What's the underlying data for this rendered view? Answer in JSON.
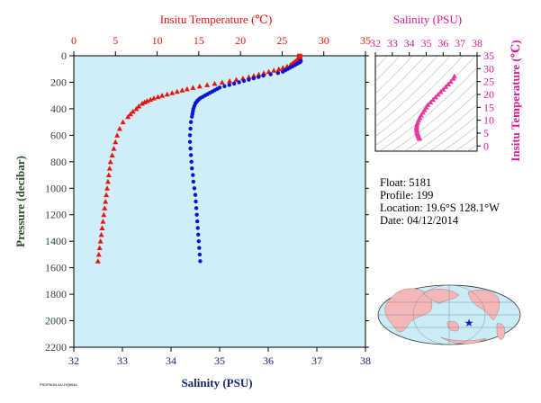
{
  "chart_data": [
    {
      "type": "scatter",
      "top_axis": {
        "label": "Insitu Temperature (℃)",
        "range": [
          0,
          35
        ],
        "ticks": [
          "0",
          "5",
          "10",
          "15",
          "20",
          "25",
          "30",
          "35"
        ]
      },
      "bottom_axis": {
        "label": "Salinity (PSU)",
        "range": [
          32,
          38
        ],
        "ticks": [
          "32",
          "33",
          "34",
          "35",
          "36",
          "37",
          "38"
        ]
      },
      "left_axis": {
        "label": "Pressure (decibar)",
        "range": [
          0,
          2200
        ],
        "inverted": true,
        "ticks": [
          "0",
          "200",
          "400",
          "600",
          "800",
          "1000",
          "1200",
          "1400",
          "1600",
          "1800",
          "2000",
          "2200"
        ]
      },
      "series": [
        {
          "marker": "triangle",
          "color": "#e8160c",
          "x_axis": "top",
          "pressure": [
            5,
            10,
            20,
            30,
            40,
            50,
            60,
            70,
            80,
            90,
            100,
            110,
            120,
            130,
            140,
            150,
            160,
            170,
            180,
            190,
            200,
            210,
            220,
            230,
            240,
            250,
            260,
            270,
            280,
            290,
            300,
            310,
            320,
            330,
            340,
            350,
            360,
            380,
            400,
            420,
            440,
            460,
            500,
            550,
            600,
            650,
            700,
            750,
            800,
            850,
            900,
            950,
            1000,
            1050,
            1100,
            1150,
            1200,
            1250,
            1300,
            1350,
            1400,
            1450,
            1500,
            1550
          ],
          "values": [
            27.1,
            27.1,
            27.0,
            26.8,
            26.6,
            26.4,
            26.2,
            26.0,
            25.6,
            25.1,
            24.6,
            24.0,
            23.4,
            22.8,
            22.2,
            21.6,
            21.0,
            20.3,
            19.5,
            18.7,
            17.8,
            16.9,
            16.0,
            15.1,
            14.3,
            13.6,
            13.0,
            12.4,
            11.8,
            11.2,
            10.6,
            10.1,
            9.6,
            9.2,
            8.8,
            8.5,
            8.2,
            7.8,
            7.5,
            7.1,
            6.8,
            6.5,
            5.9,
            5.5,
            5.2,
            5.0,
            4.8,
            4.6,
            4.4,
            4.3,
            4.2,
            4.1,
            4.0,
            3.9,
            3.8,
            3.7,
            3.6,
            3.5,
            3.4,
            3.3,
            3.2,
            3.1,
            3.0,
            2.9
          ]
        },
        {
          "marker": "circle",
          "color": "#0a14d6",
          "x_axis": "bottom",
          "pressure": [
            5,
            10,
            20,
            30,
            40,
            50,
            60,
            70,
            80,
            90,
            100,
            110,
            120,
            130,
            140,
            150,
            160,
            170,
            180,
            190,
            200,
            210,
            220,
            230,
            240,
            250,
            260,
            270,
            280,
            290,
            300,
            310,
            320,
            330,
            340,
            350,
            360,
            380,
            400,
            420,
            440,
            460,
            500,
            550,
            600,
            650,
            700,
            750,
            800,
            850,
            900,
            950,
            1000,
            1050,
            1100,
            1150,
            1200,
            1250,
            1300,
            1350,
            1400,
            1450,
            1500,
            1550
          ],
          "values": [
            36.65,
            36.65,
            36.66,
            36.66,
            36.67,
            36.65,
            36.6,
            36.55,
            36.5,
            36.45,
            36.4,
            36.35,
            36.3,
            36.2,
            36.05,
            35.9,
            35.8,
            35.7,
            35.6,
            35.5,
            35.4,
            35.3,
            35.2,
            35.1,
            35.0,
            34.95,
            34.9,
            34.85,
            34.8,
            34.75,
            34.7,
            34.65,
            34.6,
            34.57,
            34.54,
            34.52,
            34.5,
            34.48,
            34.46,
            34.45,
            34.44,
            34.43,
            34.41,
            34.4,
            34.39,
            34.39,
            34.4,
            34.41,
            34.42,
            34.43,
            34.45,
            34.46,
            34.48,
            34.5,
            34.51,
            34.52,
            34.53,
            34.54,
            34.55,
            34.56,
            34.57,
            34.58,
            34.59,
            34.6
          ]
        }
      ]
    },
    {
      "type": "scatter",
      "title": "Salinity (PSU)",
      "x_range": [
        32,
        38
      ],
      "x_ticks": [
        "32",
        "33",
        "34",
        "35",
        "36",
        "37",
        "38"
      ],
      "ylabel": "Insitu Temperature (℃)",
      "y_range": [
        -2,
        35
      ],
      "y_ticks": [
        "0",
        "5",
        "10",
        "15",
        "20",
        "25",
        "30",
        "35"
      ],
      "points_salinity": [
        34.6,
        34.59,
        34.57,
        34.55,
        34.53,
        34.51,
        34.49,
        34.47,
        34.45,
        34.44,
        34.43,
        34.43,
        34.44,
        34.46,
        34.5,
        34.55,
        34.62,
        34.7,
        34.8,
        34.9,
        35.0,
        35.1,
        35.25,
        35.4,
        35.55,
        35.7,
        35.85,
        36.0,
        36.15,
        36.3,
        36.45,
        36.6,
        36.66
      ],
      "points_temperature": [
        2.9,
        3.2,
        3.5,
        3.8,
        4.1,
        4.4,
        4.8,
        5.2,
        5.6,
        6.1,
        6.6,
        7.2,
        7.8,
        8.5,
        9.2,
        10.1,
        11.0,
        12.0,
        13.0,
        14.0,
        15.0,
        16.0,
        17.0,
        18.0,
        19.0,
        20.0,
        21.0,
        22.0,
        23.0,
        24.0,
        25.0,
        26.2,
        27.1
      ],
      "color": "#e8389a"
    }
  ],
  "info": {
    "float": "Float:  5181",
    "profile": "Profile:  199",
    "location": "Location:  19.6°S  128.1°W",
    "date": "Date:  04/12/2014"
  },
  "footer": "PSDPAGN AU.HQ6044"
}
